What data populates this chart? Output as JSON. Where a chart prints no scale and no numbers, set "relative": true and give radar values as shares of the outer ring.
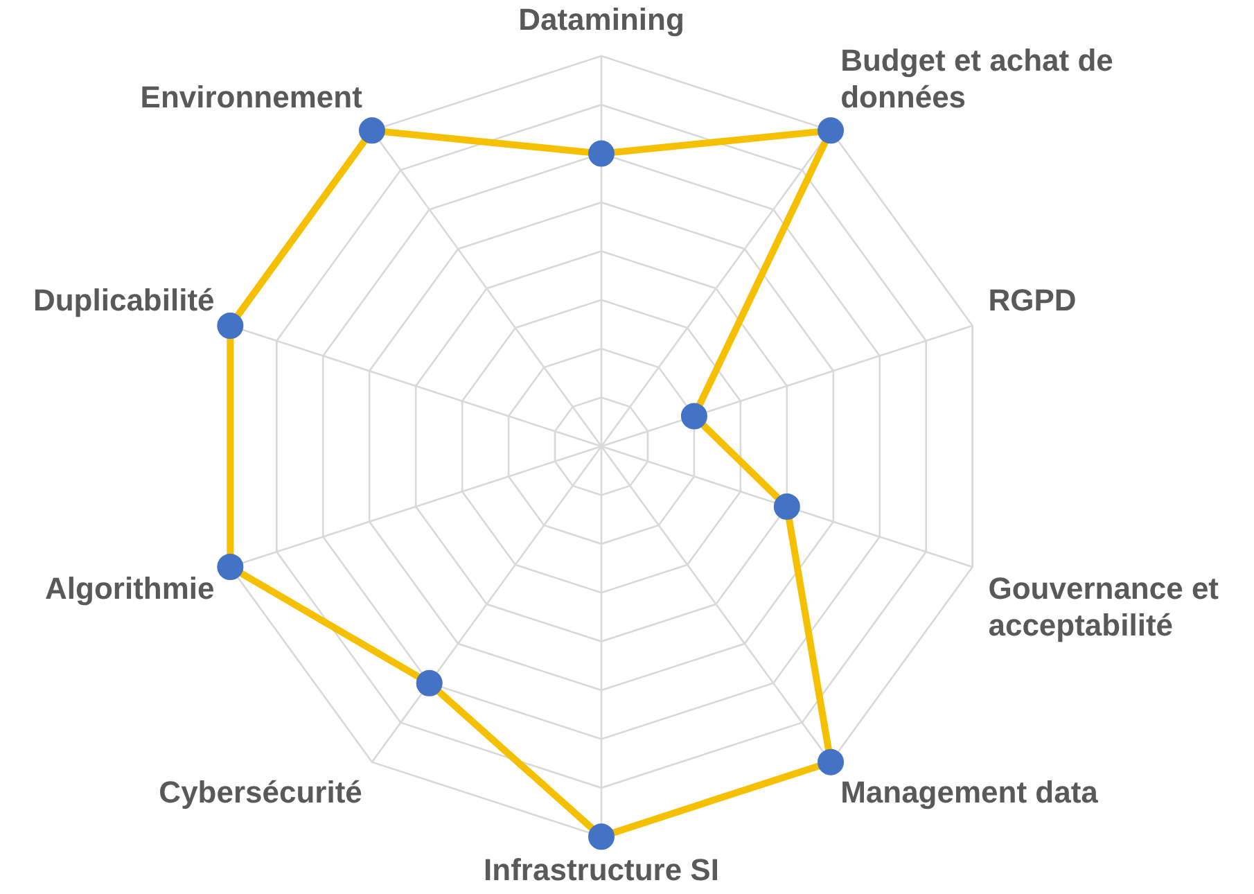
{
  "chart_data": {
    "type": "radar",
    "relative": true,
    "grid": true,
    "legend": false,
    "marker": "circle",
    "categories": [
      "Datamining",
      "Budget et achat de données",
      "RGPD",
      "Gouvernance et acceptabilité",
      "Management data",
      "Infrastructure SI",
      "Cybersécurité",
      "Algorithmie",
      "Duplicabilité",
      "Environnement"
    ],
    "series": [
      {
        "color": "#f5c000",
        "colors": [
          "#4472c4",
          "#4472c4",
          "#4472c4",
          "#4472c4",
          "#4472c4",
          "#4472c4",
          "#4472c4",
          "#4472c4",
          "#4472c4",
          "#4472c4"
        ],
        "values": [
          0.75,
          1,
          0.25,
          0.5,
          1,
          1,
          0.75,
          1,
          1,
          1
        ]
      }
    ]
  }
}
